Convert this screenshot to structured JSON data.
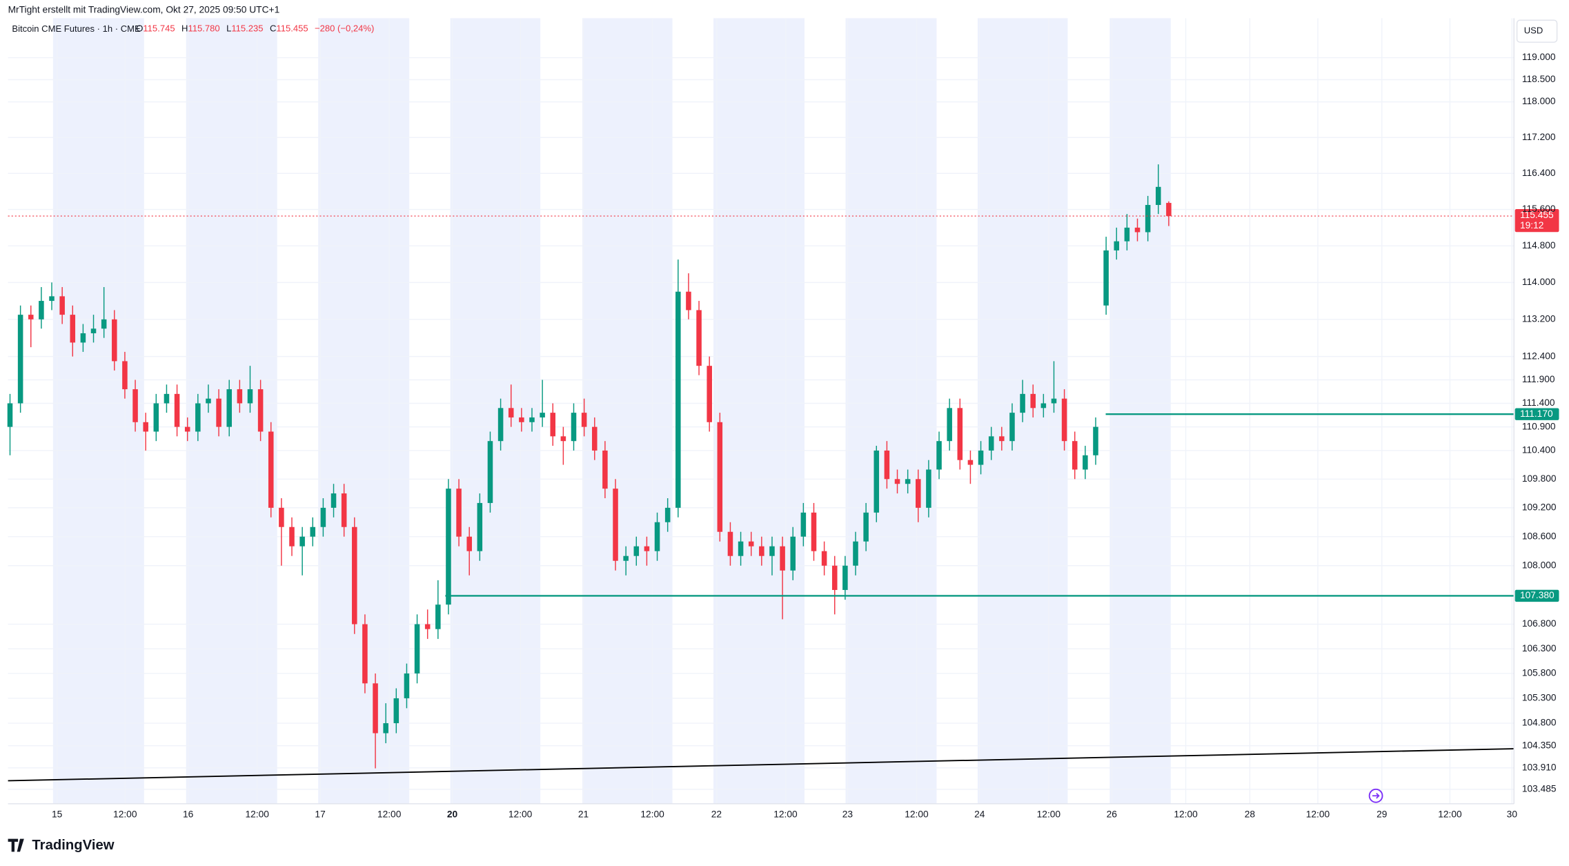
{
  "header": {
    "credit": "MrTight erstellt mit TradingView.com, Okt 27, 2025 09:50 UTC+1",
    "symbol": "Bitcoin CME Futures · 1h · CME",
    "o_key": "O",
    "o": "115.745",
    "h_key": "H",
    "h": "115.780",
    "l_key": "L",
    "l": "115.235",
    "c_key": "C",
    "c": "115.455",
    "change": "−280 (−0,24%)"
  },
  "currency": "USD",
  "brand": "TradingView",
  "chart_data": {
    "type": "candlestick",
    "log_scale": true,
    "grid": true,
    "up_color": "#089981",
    "down_color": "#f23645",
    "ylim": [
      103200,
      119900
    ],
    "yticks": [
      {
        "value": 119000,
        "label": "119.000"
      },
      {
        "value": 118500,
        "label": "118.500"
      },
      {
        "value": 118000,
        "label": "118.000"
      },
      {
        "value": 117200,
        "label": "117.200"
      },
      {
        "value": 116400,
        "label": "116.400"
      },
      {
        "value": 115600,
        "label": "115.600"
      },
      {
        "value": 114800,
        "label": "114.800"
      },
      {
        "value": 114000,
        "label": "114.000"
      },
      {
        "value": 113200,
        "label": "113.200"
      },
      {
        "value": 112400,
        "label": "112.400"
      },
      {
        "value": 111900,
        "label": "111.900"
      },
      {
        "value": 111400,
        "label": "111.400"
      },
      {
        "value": 110900,
        "label": "110.900"
      },
      {
        "value": 110400,
        "label": "110.400"
      },
      {
        "value": 109800,
        "label": "109.800"
      },
      {
        "value": 109200,
        "label": "109.200"
      },
      {
        "value": 108600,
        "label": "108.600"
      },
      {
        "value": 108000,
        "label": "108.000"
      },
      {
        "value": 106800,
        "label": "106.800"
      },
      {
        "value": 106300,
        "label": "106.300"
      },
      {
        "value": 105800,
        "label": "105.800"
      },
      {
        "value": 105300,
        "label": "105.300"
      },
      {
        "value": 104800,
        "label": "104.800"
      },
      {
        "value": 104350,
        "label": "104.350"
      },
      {
        "value": 103910,
        "label": "103.910"
      },
      {
        "value": 103485,
        "label": "103.485"
      }
    ],
    "xticks": [
      "15",
      "12:00",
      "16",
      "12:00",
      "17",
      "12:00",
      "20",
      "12:00",
      "21",
      "12:00",
      "22",
      "12:00",
      "23",
      "12:00",
      "24",
      "12:00",
      "26",
      "12:00",
      "28",
      "12:00",
      "29",
      "12:00",
      "30"
    ],
    "levels": [
      {
        "value": 111170,
        "label": "111.170",
        "color": "#089981"
      },
      {
        "value": 107380,
        "label": "107.380",
        "color": "#089981"
      }
    ],
    "last": {
      "label": "115.455",
      "countdown": "19:12"
    },
    "candles": [
      {
        "o": 110900,
        "h": 111600,
        "l": 110300,
        "c": 111400
      },
      {
        "o": 111400,
        "h": 113500,
        "l": 111200,
        "c": 113300
      },
      {
        "o": 113300,
        "h": 113500,
        "l": 112600,
        "c": 113200
      },
      {
        "o": 113200,
        "h": 113900,
        "l": 113000,
        "c": 113600
      },
      {
        "o": 113600,
        "h": 114000,
        "l": 113400,
        "c": 113700
      },
      {
        "o": 113700,
        "h": 113900,
        "l": 113100,
        "c": 113300
      },
      {
        "o": 113300,
        "h": 113500,
        "l": 112400,
        "c": 112700
      },
      {
        "o": 112700,
        "h": 113100,
        "l": 112500,
        "c": 112900
      },
      {
        "o": 112900,
        "h": 113300,
        "l": 112700,
        "c": 113000
      },
      {
        "o": 113000,
        "h": 113900,
        "l": 112800,
        "c": 113200
      },
      {
        "o": 113200,
        "h": 113400,
        "l": 112100,
        "c": 112300
      },
      {
        "o": 112300,
        "h": 112500,
        "l": 111500,
        "c": 111700
      },
      {
        "o": 111700,
        "h": 111900,
        "l": 110800,
        "c": 111000
      },
      {
        "o": 111000,
        "h": 111200,
        "l": 110400,
        "c": 110800
      },
      {
        "o": 110800,
        "h": 111600,
        "l": 110600,
        "c": 111400
      },
      {
        "o": 111400,
        "h": 111800,
        "l": 111200,
        "c": 111600
      },
      {
        "o": 111600,
        "h": 111800,
        "l": 110700,
        "c": 110900
      },
      {
        "o": 110900,
        "h": 111100,
        "l": 110600,
        "c": 110800
      },
      {
        "o": 110800,
        "h": 111600,
        "l": 110600,
        "c": 111400
      },
      {
        "o": 111400,
        "h": 111800,
        "l": 111200,
        "c": 111500
      },
      {
        "o": 111500,
        "h": 111700,
        "l": 110700,
        "c": 110900
      },
      {
        "o": 110900,
        "h": 111900,
        "l": 110700,
        "c": 111700
      },
      {
        "o": 111700,
        "h": 111900,
        "l": 111200,
        "c": 111400
      },
      {
        "o": 111400,
        "h": 112200,
        "l": 111200,
        "c": 111700
      },
      {
        "o": 111700,
        "h": 111900,
        "l": 110600,
        "c": 110800
      },
      {
        "o": 110800,
        "h": 111000,
        "l": 109000,
        "c": 109200
      },
      {
        "o": 109200,
        "h": 109400,
        "l": 108000,
        "c": 108800
      },
      {
        "o": 108800,
        "h": 109000,
        "l": 108200,
        "c": 108400
      },
      {
        "o": 108400,
        "h": 108800,
        "l": 107800,
        "c": 108600
      },
      {
        "o": 108600,
        "h": 109000,
        "l": 108400,
        "c": 108800
      },
      {
        "o": 108800,
        "h": 109400,
        "l": 108600,
        "c": 109200
      },
      {
        "o": 109200,
        "h": 109700,
        "l": 109000,
        "c": 109500
      },
      {
        "o": 109500,
        "h": 109700,
        "l": 108600,
        "c": 108800
      },
      {
        "o": 108800,
        "h": 109000,
        "l": 106600,
        "c": 106800
      },
      {
        "o": 106800,
        "h": 107000,
        "l": 105400,
        "c": 105600
      },
      {
        "o": 105600,
        "h": 105800,
        "l": 103900,
        "c": 104600
      },
      {
        "o": 104600,
        "h": 105200,
        "l": 104400,
        "c": 104800
      },
      {
        "o": 104800,
        "h": 105500,
        "l": 104600,
        "c": 105300
      },
      {
        "o": 105300,
        "h": 106000,
        "l": 105100,
        "c": 105800
      },
      {
        "o": 105800,
        "h": 107000,
        "l": 105600,
        "c": 106800
      },
      {
        "o": 106800,
        "h": 107100,
        "l": 106500,
        "c": 106700
      },
      {
        "o": 106700,
        "h": 107700,
        "l": 106500,
        "c": 107200
      },
      {
        "o": 107200,
        "h": 109800,
        "l": 107000,
        "c": 109600
      },
      {
        "o": 109600,
        "h": 109800,
        "l": 108400,
        "c": 108600
      },
      {
        "o": 108600,
        "h": 108800,
        "l": 107800,
        "c": 108300
      },
      {
        "o": 108300,
        "h": 109500,
        "l": 108100,
        "c": 109300
      },
      {
        "o": 109300,
        "h": 110800,
        "l": 109100,
        "c": 110600
      },
      {
        "o": 110600,
        "h": 111500,
        "l": 110400,
        "c": 111300
      },
      {
        "o": 111300,
        "h": 111800,
        "l": 110900,
        "c": 111100
      },
      {
        "o": 111100,
        "h": 111300,
        "l": 110800,
        "c": 111000
      },
      {
        "o": 111000,
        "h": 111300,
        "l": 110800,
        "c": 111100
      },
      {
        "o": 111100,
        "h": 111900,
        "l": 110900,
        "c": 111200
      },
      {
        "o": 111200,
        "h": 111400,
        "l": 110500,
        "c": 110700
      },
      {
        "o": 110700,
        "h": 110900,
        "l": 110100,
        "c": 110600
      },
      {
        "o": 110600,
        "h": 111400,
        "l": 110400,
        "c": 111200
      },
      {
        "o": 111200,
        "h": 111500,
        "l": 110700,
        "c": 110900
      },
      {
        "o": 110900,
        "h": 111100,
        "l": 110200,
        "c": 110400
      },
      {
        "o": 110400,
        "h": 110600,
        "l": 109400,
        "c": 109600
      },
      {
        "o": 109600,
        "h": 109800,
        "l": 107900,
        "c": 108100
      },
      {
        "o": 108100,
        "h": 108400,
        "l": 107800,
        "c": 108200
      },
      {
        "o": 108200,
        "h": 108600,
        "l": 108000,
        "c": 108400
      },
      {
        "o": 108400,
        "h": 108600,
        "l": 108000,
        "c": 108300
      },
      {
        "o": 108300,
        "h": 109100,
        "l": 108100,
        "c": 108900
      },
      {
        "o": 108900,
        "h": 109400,
        "l": 108700,
        "c": 109200
      },
      {
        "o": 109200,
        "h": 114500,
        "l": 109000,
        "c": 113800
      },
      {
        "o": 113800,
        "h": 114200,
        "l": 113200,
        "c": 113400
      },
      {
        "o": 113400,
        "h": 113600,
        "l": 112000,
        "c": 112200
      },
      {
        "o": 112200,
        "h": 112400,
        "l": 110800,
        "c": 111000
      },
      {
        "o": 111000,
        "h": 111200,
        "l": 108500,
        "c": 108700
      },
      {
        "o": 108700,
        "h": 108900,
        "l": 108000,
        "c": 108200
      },
      {
        "o": 108200,
        "h": 108700,
        "l": 108000,
        "c": 108500
      },
      {
        "o": 108500,
        "h": 108700,
        "l": 108200,
        "c": 108400
      },
      {
        "o": 108400,
        "h": 108600,
        "l": 108000,
        "c": 108200
      },
      {
        "o": 108200,
        "h": 108600,
        "l": 107800,
        "c": 108400
      },
      {
        "o": 108400,
        "h": 108600,
        "l": 106900,
        "c": 107900
      },
      {
        "o": 107900,
        "h": 108800,
        "l": 107700,
        "c": 108600
      },
      {
        "o": 108600,
        "h": 109300,
        "l": 108400,
        "c": 109100
      },
      {
        "o": 109100,
        "h": 109300,
        "l": 108100,
        "c": 108300
      },
      {
        "o": 108300,
        "h": 108500,
        "l": 107800,
        "c": 108000
      },
      {
        "o": 108000,
        "h": 108200,
        "l": 107000,
        "c": 107500
      },
      {
        "o": 107500,
        "h": 108200,
        "l": 107300,
        "c": 108000
      },
      {
        "o": 108000,
        "h": 108700,
        "l": 107800,
        "c": 108500
      },
      {
        "o": 108500,
        "h": 109300,
        "l": 108300,
        "c": 109100
      },
      {
        "o": 109100,
        "h": 110500,
        "l": 108900,
        "c": 110400
      },
      {
        "o": 110400,
        "h": 110600,
        "l": 109600,
        "c": 109800
      },
      {
        "o": 109800,
        "h": 110000,
        "l": 109500,
        "c": 109700
      },
      {
        "o": 109700,
        "h": 110000,
        "l": 109500,
        "c": 109800
      },
      {
        "o": 109800,
        "h": 110000,
        "l": 108900,
        "c": 109200
      },
      {
        "o": 109200,
        "h": 110200,
        "l": 109000,
        "c": 110000
      },
      {
        "o": 110000,
        "h": 110800,
        "l": 109800,
        "c": 110600
      },
      {
        "o": 110600,
        "h": 111500,
        "l": 110400,
        "c": 111300
      },
      {
        "o": 111300,
        "h": 111500,
        "l": 110000,
        "c": 110200
      },
      {
        "o": 110200,
        "h": 110400,
        "l": 109700,
        "c": 110100
      },
      {
        "o": 110100,
        "h": 110600,
        "l": 109900,
        "c": 110400
      },
      {
        "o": 110400,
        "h": 110900,
        "l": 110200,
        "c": 110700
      },
      {
        "o": 110700,
        "h": 110900,
        "l": 110400,
        "c": 110600
      },
      {
        "o": 110600,
        "h": 111400,
        "l": 110400,
        "c": 111200
      },
      {
        "o": 111200,
        "h": 111900,
        "l": 111000,
        "c": 111600
      },
      {
        "o": 111600,
        "h": 111800,
        "l": 111100,
        "c": 111300
      },
      {
        "o": 111300,
        "h": 111600,
        "l": 111100,
        "c": 111400
      },
      {
        "o": 111400,
        "h": 112300,
        "l": 111200,
        "c": 111500
      },
      {
        "o": 111500,
        "h": 111700,
        "l": 110400,
        "c": 110600
      },
      {
        "o": 110600,
        "h": 110800,
        "l": 109800,
        "c": 110000
      },
      {
        "o": 110000,
        "h": 110500,
        "l": 109800,
        "c": 110300
      },
      {
        "o": 110300,
        "h": 111100,
        "l": 110100,
        "c": 110900
      },
      {
        "o": 113500,
        "h": 115000,
        "l": 113300,
        "c": 114700
      },
      {
        "o": 114700,
        "h": 115200,
        "l": 114500,
        "c": 114900
      },
      {
        "o": 114900,
        "h": 115500,
        "l": 114700,
        "c": 115200
      },
      {
        "o": 115200,
        "h": 115400,
        "l": 114900,
        "c": 115100
      },
      {
        "o": 115100,
        "h": 115900,
        "l": 114900,
        "c": 115700
      },
      {
        "o": 115700,
        "h": 116600,
        "l": 115500,
        "c": 116100
      },
      {
        "o": 115745,
        "h": 115780,
        "l": 115235,
        "c": 115455
      }
    ]
  }
}
